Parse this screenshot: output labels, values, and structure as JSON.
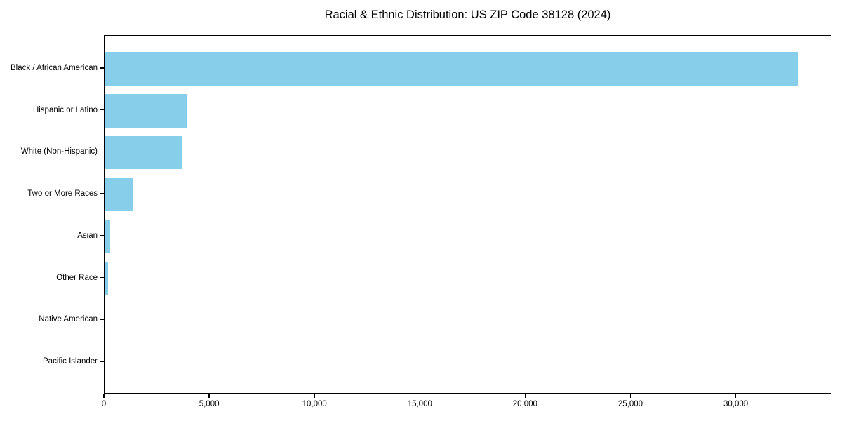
{
  "title": "Racial & Ethnic Distribution: US ZIP Code 38128 (2024)",
  "chart_data": {
    "type": "bar",
    "orientation": "horizontal",
    "title": "Racial & Ethnic Distribution: US ZIP Code 38128 (2024)",
    "categories": [
      "Black / African American",
      "Hispanic or Latino",
      "White (Non-Hispanic)",
      "Two or More Races",
      "Asian",
      "Other Race",
      "Native American",
      "Pacific Islander"
    ],
    "values": [
      32900,
      3900,
      3650,
      1340,
      265,
      165,
      0,
      0
    ],
    "xlabel": "",
    "ylabel": "",
    "xlim": [
      0,
      34545
    ],
    "x_ticks": [
      0,
      5000,
      10000,
      15000,
      20000,
      25000,
      30000
    ],
    "x_tick_labels": [
      "0",
      "5,000",
      "10,000",
      "15,000",
      "20,000",
      "25,000",
      "30,000"
    ],
    "bar_color": "#87CEEB",
    "axis_color": "#000000",
    "background_color": "#ffffff",
    "grid": false,
    "legend": null
  }
}
